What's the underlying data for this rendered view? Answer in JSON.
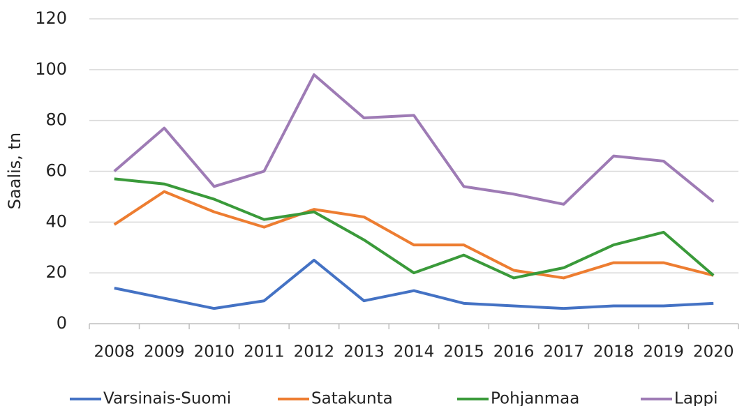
{
  "chart_data": {
    "type": "line",
    "y_label": "Saalis, tn",
    "categories": [
      "2008",
      "2009",
      "2010",
      "2011",
      "2012",
      "2013",
      "2014",
      "2015",
      "2016",
      "2017",
      "2018",
      "2019",
      "2020"
    ],
    "series": [
      {
        "name": "Varsinais-Suomi",
        "color": "#4472c4",
        "values": [
          14,
          10,
          6,
          9,
          25,
          9,
          13,
          8,
          7,
          6,
          7,
          7,
          8
        ]
      },
      {
        "name": "Satakunta",
        "color": "#ed7d31",
        "values": [
          39,
          52,
          44,
          38,
          45,
          42,
          31,
          31,
          21,
          18,
          24,
          24,
          19
        ]
      },
      {
        "name": "Pohjanmaa",
        "color": "#3a9a3a",
        "values": [
          57,
          55,
          49,
          41,
          44,
          33,
          20,
          27,
          18,
          22,
          31,
          36,
          19
        ]
      },
      {
        "name": "Lappi",
        "color": "#9e7bb5",
        "values": [
          60,
          77,
          54,
          60,
          98,
          81,
          82,
          54,
          51,
          47,
          66,
          64,
          48
        ]
      }
    ],
    "ylim": [
      0,
      120
    ],
    "yticks": [
      0,
      20,
      40,
      60,
      80,
      100,
      120
    ],
    "grid": true,
    "legend": "bottom"
  }
}
